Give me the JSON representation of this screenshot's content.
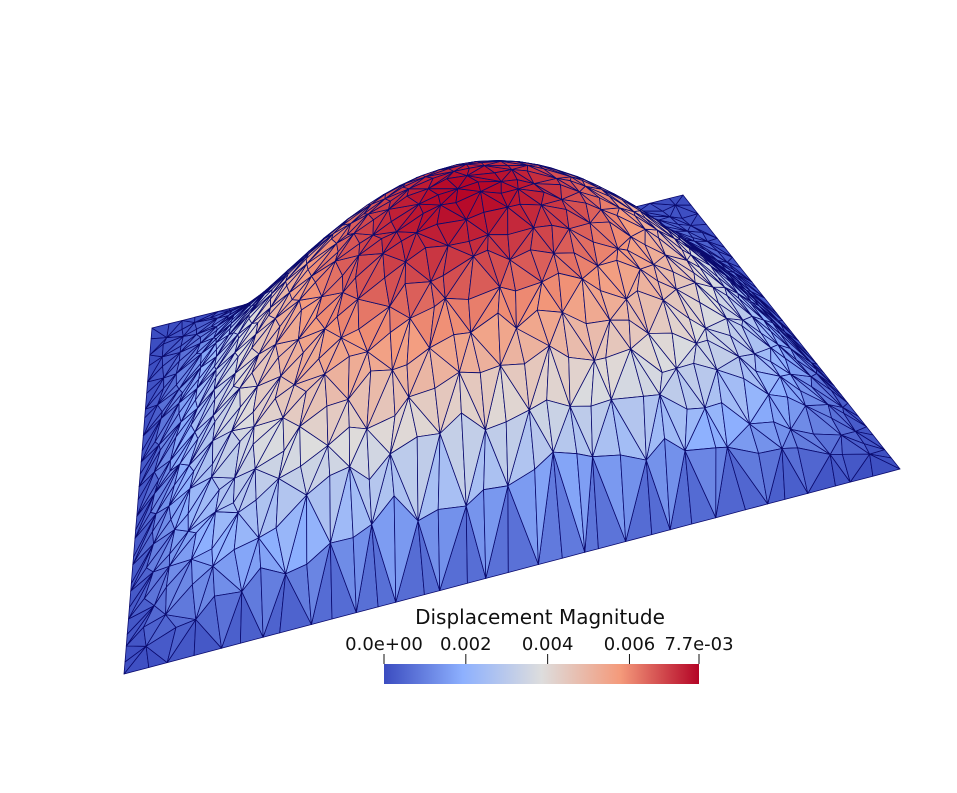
{
  "colorbar": {
    "title": "Displacement  Magnitude",
    "tick_labels": [
      "0.0e+00",
      "0.002",
      "0.004",
      "0.006",
      "7.7e-03"
    ],
    "tick_values": [
      0.0,
      0.002,
      0.004,
      0.006,
      0.0077
    ],
    "range": [
      0.0,
      0.0077
    ],
    "colormap": [
      "#3b4cc0",
      "#8db0fe",
      "#dddddd",
      "#f49a7b",
      "#b40426"
    ]
  },
  "mesh": {
    "edge_color": "#0a0a6e",
    "background": "#ffffff"
  }
}
